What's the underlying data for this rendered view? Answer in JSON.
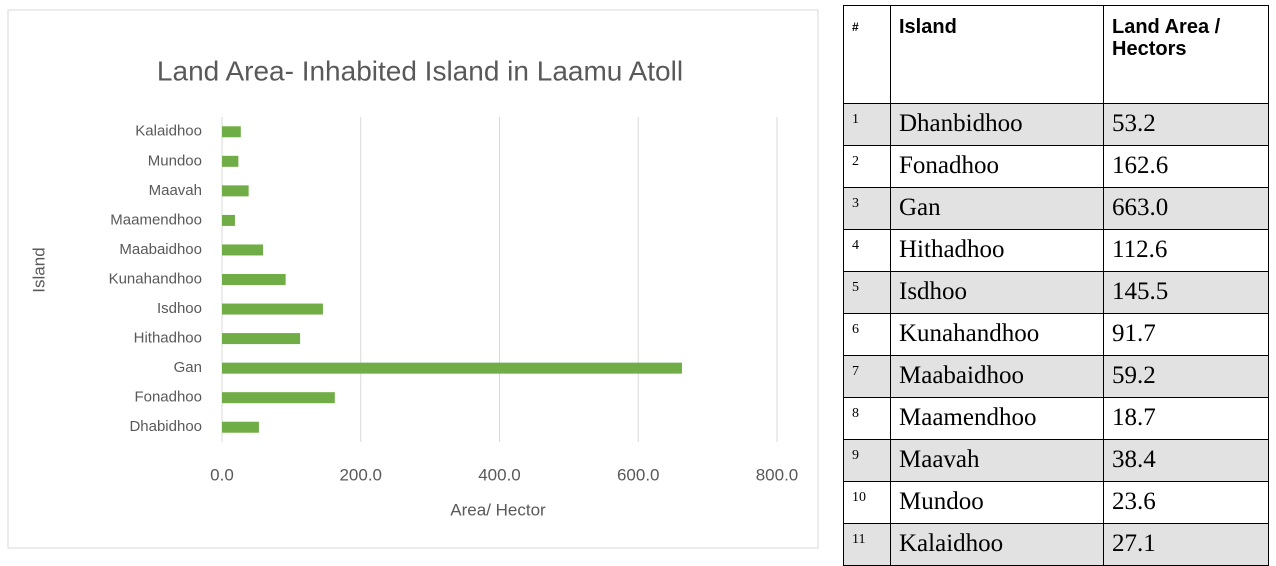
{
  "chart_data": {
    "type": "hbar",
    "title": "Land Area- Inhabited Island in Laamu Atoll",
    "x_label": "Area/ Hector",
    "y_label": "Island",
    "categories": [
      "Dhabidhoo",
      "Fonadhoo",
      "Gan",
      "Hithadhoo",
      "Isdhoo",
      "Kunahandhoo",
      "Maabaidhoo",
      "Maamendhoo",
      "Maavah",
      "Mundoo",
      "Kalaidhoo"
    ],
    "values": [
      53.2,
      162.6,
      663.0,
      112.6,
      145.5,
      91.7,
      59.2,
      18.7,
      38.4,
      23.6,
      27.1
    ],
    "color": "#70ad47",
    "xlim": [
      0,
      800
    ],
    "xticks": [
      {
        "value": 0,
        "label": "0.0"
      },
      {
        "value": 200,
        "label": "200.0"
      },
      {
        "value": 400,
        "label": "400.0"
      },
      {
        "value": 600,
        "label": "600.0"
      },
      {
        "value": 800,
        "label": "800.0"
      }
    ],
    "grid": true
  },
  "table": {
    "header": [
      "#",
      "Island",
      "Land Area / Hectors"
    ],
    "rows": [
      [
        "1",
        "Dhanbidhoo",
        "53.2"
      ],
      [
        "2",
        "Fonadhoo",
        "162.6"
      ],
      [
        "3",
        "Gan",
        "663.0"
      ],
      [
        "4",
        "Hithadhoo",
        "112.6"
      ],
      [
        "5",
        "Isdhoo",
        "145.5"
      ],
      [
        "6",
        "Kunahandhoo",
        "91.7"
      ],
      [
        "7",
        "Maabaidhoo",
        "59.2"
      ],
      [
        "8",
        "Maamendhoo",
        "18.7"
      ],
      [
        "9",
        "Maavah",
        "38.4"
      ],
      [
        "10",
        "Mundoo",
        "23.6"
      ],
      [
        "11",
        "Kalaidhoo",
        "27.1"
      ]
    ]
  }
}
